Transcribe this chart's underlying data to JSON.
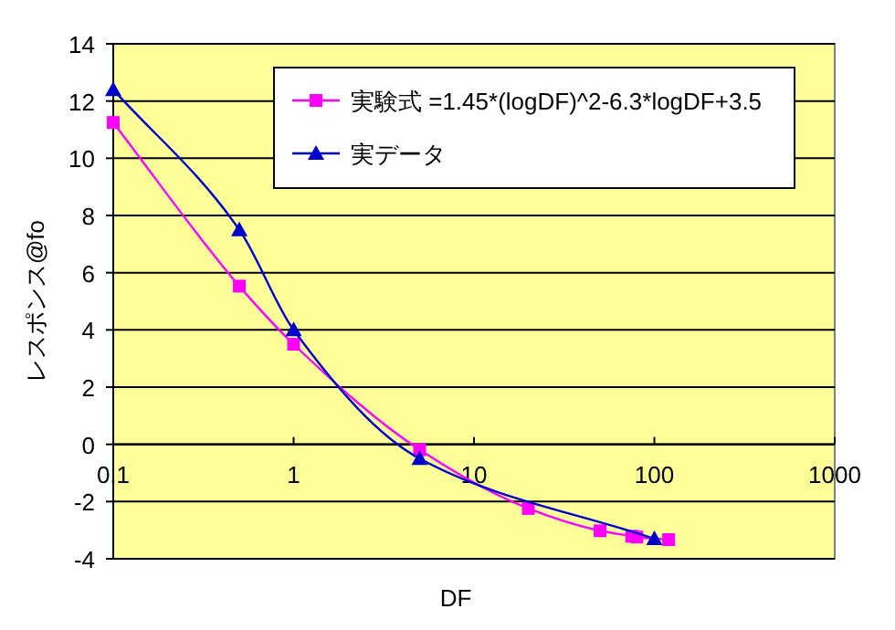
{
  "chart_data": {
    "type": "line",
    "xlabel": "DF",
    "ylabel": "レスポンス@fo",
    "log": "x",
    "xlim": [
      0.1,
      1000
    ],
    "xticks": [
      0.1,
      1,
      10,
      100,
      1000
    ],
    "ylim": [
      -4,
      14
    ],
    "yticks": [
      -4,
      -2,
      0,
      2,
      4,
      6,
      8,
      10,
      12,
      14
    ],
    "grid": "y",
    "legend": "top right",
    "series": [
      {
        "name": "実験式 =1.45*(logDF)^2-6.3*logDF+3.5",
        "color": "#ff00ff",
        "marker": "square",
        "x": [
          0.1,
          0.5,
          1,
          5,
          20,
          50,
          75,
          80,
          120
        ],
        "values": [
          11.25,
          5.53,
          3.5,
          -0.19,
          -2.24,
          -3.02,
          -3.21,
          -3.24,
          -3.33
        ]
      },
      {
        "name": "実データ",
        "color": "#0000cc",
        "marker": "triangle",
        "x": [
          0.1,
          0.5,
          1,
          5,
          100
        ],
        "values": [
          12.4,
          7.5,
          4.0,
          -0.5,
          -3.3
        ]
      }
    ]
  }
}
